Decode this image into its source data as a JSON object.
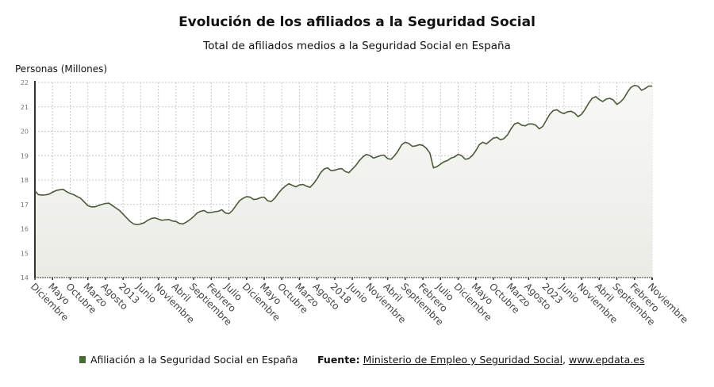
{
  "chart_data": {
    "type": "area",
    "title": "Evolución de los afiliados a la Seguridad Social",
    "subtitle": "Total de afiliados medios a la Seguridad Social en España",
    "ylabel": "Personas (Millones)",
    "xlabel": "",
    "ylim": [
      14,
      22
    ],
    "yticks": [
      14,
      15,
      16,
      17,
      18,
      19,
      20,
      21,
      22
    ],
    "grid": true,
    "start_month": "2010-12",
    "end_month": "2025-11",
    "x_tick_labels": [
      "Diciembre",
      "Mayo",
      "Octubre",
      "Marzo",
      "Agosto",
      "2013",
      "Junio",
      "Noviembre",
      "Abril",
      "Septiembre",
      "Febrero",
      "Julio",
      "Diciembre",
      "Mayo",
      "Octubre",
      "Marzo",
      "Agosto",
      "2018",
      "Junio",
      "Noviembre",
      "Abril",
      "Septiembre",
      "Febrero",
      "Julio",
      "Diciembre",
      "Mayo",
      "Octubre",
      "Marzo",
      "Agosto",
      "2023",
      "Junio",
      "Noviembre",
      "Abril",
      "Septiembre",
      "Febrero",
      "",
      "",
      "",
      "",
      "Noviembre"
    ],
    "series": [
      {
        "name": "Afiliación a la Seguridad Social en España",
        "color": "#4a6b35",
        "values": [
          17.55,
          17.4,
          17.38,
          17.39,
          17.42,
          17.5,
          17.57,
          17.6,
          17.62,
          17.52,
          17.45,
          17.4,
          17.32,
          17.25,
          17.1,
          16.95,
          16.9,
          16.9,
          16.95,
          17.0,
          17.04,
          17.05,
          16.95,
          16.85,
          16.75,
          16.6,
          16.45,
          16.3,
          16.2,
          16.17,
          16.2,
          16.25,
          16.35,
          16.42,
          16.45,
          16.4,
          16.35,
          16.37,
          16.38,
          16.32,
          16.3,
          16.22,
          16.2,
          16.28,
          16.38,
          16.5,
          16.65,
          16.72,
          16.75,
          16.66,
          16.67,
          16.7,
          16.72,
          16.78,
          16.65,
          16.62,
          16.75,
          16.95,
          17.15,
          17.25,
          17.32,
          17.3,
          17.2,
          17.22,
          17.28,
          17.3,
          17.15,
          17.12,
          17.25,
          17.45,
          17.62,
          17.75,
          17.85,
          17.78,
          17.72,
          17.8,
          17.82,
          17.75,
          17.7,
          17.85,
          18.05,
          18.3,
          18.45,
          18.5,
          18.38,
          18.4,
          18.45,
          18.47,
          18.35,
          18.3,
          18.45,
          18.6,
          18.8,
          18.95,
          19.05,
          19.0,
          18.9,
          18.95,
          19.0,
          19.02,
          18.88,
          18.85,
          19.0,
          19.2,
          19.45,
          19.55,
          19.5,
          19.38,
          19.4,
          19.45,
          19.42,
          19.3,
          19.1,
          18.5,
          18.55,
          18.65,
          18.75,
          18.8,
          18.9,
          18.95,
          19.05,
          19.0,
          18.85,
          18.88,
          19.0,
          19.2,
          19.45,
          19.55,
          19.48,
          19.6,
          19.72,
          19.75,
          19.65,
          19.7,
          19.85,
          20.1,
          20.3,
          20.35,
          20.25,
          20.22,
          20.3,
          20.3,
          20.25,
          20.1,
          20.2,
          20.45,
          20.7,
          20.85,
          20.88,
          20.78,
          20.72,
          20.8,
          20.82,
          20.75,
          20.6,
          20.7,
          20.9,
          21.15,
          21.35,
          21.42,
          21.3,
          21.22,
          21.32,
          21.35,
          21.28,
          21.1,
          21.2,
          21.35,
          21.6,
          21.8,
          21.88,
          21.85,
          21.68,
          21.75,
          21.85,
          21.85
        ]
      }
    ],
    "legend": "bottom-left"
  },
  "footer": {
    "legend_label": "Afiliación a la Seguridad Social en España",
    "source_prefix": "Fuente:",
    "source_link1": "Ministerio de Empleo y Seguridad Social",
    "source_sep": ", ",
    "source_link2": "www.epdata.es"
  }
}
